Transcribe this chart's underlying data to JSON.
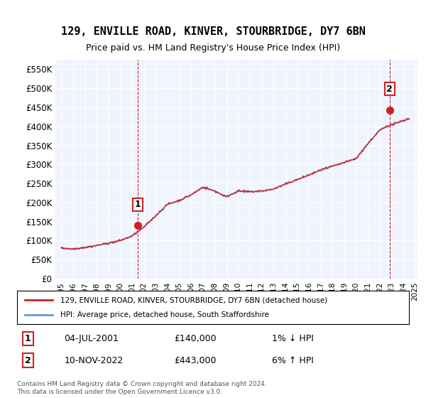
{
  "title_line1": "129, ENVILLE ROAD, KINVER, STOURBRIDGE, DY7 6BN",
  "title_line2": "Price paid vs. HM Land Registry's House Price Index (HPI)",
  "ylabel": "",
  "xlabel": "",
  "ylim": [
    0,
    575000
  ],
  "yticks": [
    0,
    50000,
    100000,
    150000,
    200000,
    250000,
    300000,
    350000,
    400000,
    450000,
    500000,
    550000
  ],
  "ytick_labels": [
    "£0",
    "£50K",
    "£100K",
    "£150K",
    "£200K",
    "£250K",
    "£300K",
    "£350K",
    "£400K",
    "£450K",
    "£500K",
    "£550K"
  ],
  "hpi_color": "#6699cc",
  "price_color": "#cc2222",
  "marker1_date": 2001.5,
  "marker1_price": 140000,
  "marker2_date": 2022.87,
  "marker2_price": 443000,
  "legend_label1": "129, ENVILLE ROAD, KINVER, STOURBRIDGE, DY7 6BN (detached house)",
  "legend_label2": "HPI: Average price, detached house, South Staffordshire",
  "annotation1": "1",
  "annotation2": "2",
  "note1_label": "1",
  "note1_date": "04-JUL-2001",
  "note1_price": "£140,000",
  "note1_change": "1% ↓ HPI",
  "note2_label": "2",
  "note2_date": "10-NOV-2022",
  "note2_price": "£443,000",
  "note2_change": "6% ↑ HPI",
  "footer": "Contains HM Land Registry data © Crown copyright and database right 2024.\nThis data is licensed under the Open Government Licence v3.0.",
  "background_color": "#ffffff",
  "plot_bg_color": "#f0f4ff"
}
